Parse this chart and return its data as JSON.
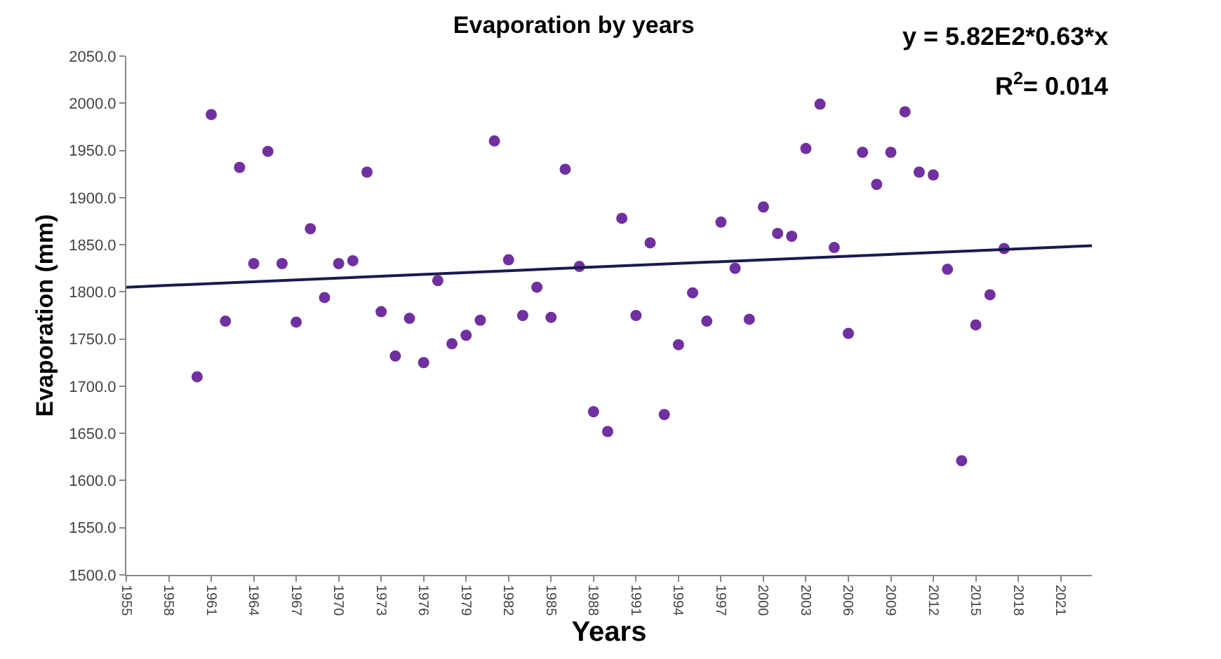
{
  "chart_data": {
    "type": "scatter",
    "title": "Evaporation by years",
    "xlabel": "Years",
    "ylabel": "Evaporation (mm)",
    "annotations": [
      "y = 5.82E2*0.63*x",
      "R$^{2}$= 0.014"
    ],
    "xlim": [
      1955,
      2023.2
    ],
    "xticks": [
      1955,
      1958,
      1961,
      1964,
      1967,
      1970,
      1973,
      1976,
      1979,
      1982,
      1985,
      1988,
      1991,
      1994,
      1997,
      2000,
      2003,
      2006,
      2009,
      2012,
      2015,
      2018,
      2021
    ],
    "ylim": [
      1500,
      2050
    ],
    "yticks": [
      {
        "value": 1500,
        "label": "1500.0"
      },
      {
        "value": 1550,
        "label": "1550.0"
      },
      {
        "value": 1600,
        "label": "1600.0"
      },
      {
        "value": 1650,
        "label": "1650.0"
      },
      {
        "value": 1700,
        "label": "1700.0"
      },
      {
        "value": 1750,
        "label": "1750.0"
      },
      {
        "value": 1800,
        "label": "1800.0"
      },
      {
        "value": 1850,
        "label": "1850.0"
      },
      {
        "value": 1900,
        "label": "1900.0"
      },
      {
        "value": 1950,
        "label": "1950.0"
      },
      {
        "value": 2000,
        "label": "2000.0"
      },
      {
        "value": 2050,
        "label": "2050.0"
      }
    ],
    "grid": false,
    "series": [
      {
        "marker": "circle",
        "color": "#7030a0",
        "x": [
          1960,
          1961,
          1962,
          1963,
          1964,
          1965,
          1966,
          1967,
          1968,
          1969,
          1970,
          1971,
          1972,
          1973,
          1974,
          1975,
          1976,
          1977,
          1978,
          1979,
          1980,
          1981,
          1982,
          1983,
          1984,
          1985,
          1986,
          1987,
          1988,
          1989,
          1990,
          1991,
          1992,
          1993,
          1994,
          1995,
          1996,
          1997,
          1998,
          1999,
          2000,
          2001,
          2002,
          2003,
          2004,
          2005,
          2006,
          2007,
          2008,
          2009,
          2010,
          2011,
          2012,
          2013,
          2014,
          2015,
          2016,
          2017
        ],
        "values": [
          1710,
          1988,
          1769,
          1932,
          1830,
          1949,
          1830,
          1768,
          1867,
          1794,
          1830,
          1833,
          1927,
          1779,
          1732,
          1772,
          1725,
          1812,
          1745,
          1754,
          1770,
          1960,
          1834,
          1775,
          1805,
          1773,
          1930,
          1827,
          1673,
          1652,
          1878,
          1775,
          1852,
          1670,
          1744,
          1799,
          1769,
          1874,
          1825,
          1771,
          1890,
          1862,
          1859,
          1952,
          1999,
          1847,
          1756,
          1948,
          1914,
          1948,
          1991,
          1927,
          1924,
          1824,
          1621,
          1765,
          1797,
          1846
        ]
      },
      {
        "type": "line",
        "color": "#1a1a50",
        "line_style": "solid",
        "x": [
          1955,
          2023.2
        ],
        "values": [
          1805,
          1849
        ]
      }
    ]
  }
}
